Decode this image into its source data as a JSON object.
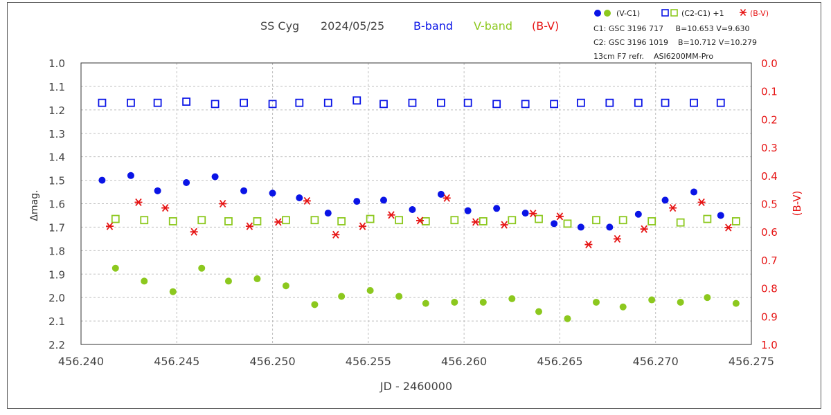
{
  "chart_data": {
    "type": "scatter",
    "title": {
      "object": "SS Cyg",
      "date": "2024/05/25",
      "b_label": "B-band",
      "v_label": "V-band",
      "bv_label": "(B-V)"
    },
    "xlabel": "JD - 2460000",
    "ylabel_left": "Δmag.",
    "ylabel_right": "(B-V)",
    "xlim": [
      456.24,
      456.275
    ],
    "ylim_left": [
      1.0,
      2.2
    ],
    "ylim_right": [
      0.0,
      1.0
    ],
    "x_ticks": [
      "456.240",
      "456.245",
      "456.250",
      "456.255",
      "456.260",
      "456.265",
      "456.270",
      "456.275"
    ],
    "y_ticks_left": [
      "1.0",
      "1.1",
      "1.2",
      "1.3",
      "1.4",
      "1.5",
      "1.6",
      "1.7",
      "1.8",
      "1.9",
      "2.0",
      "2.1",
      "2.2"
    ],
    "y_ticks_right": [
      "0.0",
      "0.1",
      "0.2",
      "0.3",
      "0.4",
      "0.5",
      "0.6",
      "0.7",
      "0.8",
      "0.9",
      "1.0"
    ],
    "grid": true,
    "legend": {
      "vc1_label": "(V-C1)",
      "c2c1_label": "(C2-C1) +1",
      "bv_label": "(B-V)",
      "info_lines": [
        "C1: GSC 3196 717     B=10.653 V=9.630",
        "C2: GSC 3196 1019    B=10.712 V=10.279",
        "13cm F7 refr.    ASI6200MM-Pro"
      ]
    },
    "colors": {
      "b": "#0a14e6",
      "v": "#8cc81e",
      "bv": "#e61414",
      "grid": "#bfbfbf"
    },
    "series": [
      {
        "name": "(V-C1)",
        "band": "B",
        "axis": "left",
        "marker": "filled-circle",
        "x": [
          456.2411,
          456.2426,
          456.244,
          456.2455,
          456.247,
          456.2485,
          456.25,
          456.2514,
          456.2529,
          456.2544,
          456.2558,
          456.2573,
          456.2588,
          456.2602,
          456.2617,
          456.2632,
          456.2647,
          456.2661,
          456.2676,
          456.2691,
          456.2705,
          456.272,
          456.2734
        ],
        "y": [
          1.5,
          1.48,
          1.545,
          1.51,
          1.485,
          1.545,
          1.555,
          1.575,
          1.64,
          1.59,
          1.585,
          1.625,
          1.56,
          1.63,
          1.62,
          1.64,
          1.685,
          1.7,
          1.7,
          1.645,
          1.585,
          1.55,
          1.65
        ]
      },
      {
        "name": "(V-C1)",
        "band": "V",
        "axis": "left",
        "marker": "filled-circle",
        "x": [
          456.2418,
          456.2433,
          456.2448,
          456.2463,
          456.2477,
          456.2492,
          456.2507,
          456.2522,
          456.2536,
          456.2551,
          456.2566,
          456.258,
          456.2595,
          456.261,
          456.2625,
          456.2639,
          456.2654,
          456.2669,
          456.2683,
          456.2698,
          456.2713,
          456.2727,
          456.2742
        ],
        "y": [
          1.875,
          1.93,
          1.975,
          1.875,
          1.93,
          1.92,
          1.95,
          2.03,
          1.995,
          1.97,
          1.995,
          2.025,
          2.02,
          2.02,
          2.005,
          2.06,
          2.09,
          2.02,
          2.04,
          2.01,
          2.02,
          2.0,
          2.025
        ]
      },
      {
        "name": "(C2-C1) +1",
        "band": "B",
        "axis": "left",
        "marker": "open-square",
        "x": [
          456.2411,
          456.2426,
          456.244,
          456.2455,
          456.247,
          456.2485,
          456.25,
          456.2514,
          456.2529,
          456.2544,
          456.2558,
          456.2573,
          456.2588,
          456.2602,
          456.2617,
          456.2632,
          456.2647,
          456.2661,
          456.2676,
          456.2691,
          456.2705,
          456.272,
          456.2734
        ],
        "y": [
          1.17,
          1.17,
          1.17,
          1.165,
          1.175,
          1.17,
          1.175,
          1.17,
          1.17,
          1.16,
          1.175,
          1.17,
          1.17,
          1.17,
          1.175,
          1.175,
          1.175,
          1.17,
          1.17,
          1.17,
          1.17,
          1.17,
          1.17
        ]
      },
      {
        "name": "(C2-C1) +1",
        "band": "V",
        "axis": "left",
        "marker": "open-square",
        "x": [
          456.2418,
          456.2433,
          456.2448,
          456.2463,
          456.2477,
          456.2492,
          456.2507,
          456.2522,
          456.2536,
          456.2551,
          456.2566,
          456.258,
          456.2595,
          456.261,
          456.2625,
          456.2639,
          456.2654,
          456.2669,
          456.2683,
          456.2698,
          456.2713,
          456.2727,
          456.2742
        ],
        "y": [
          1.665,
          1.67,
          1.675,
          1.67,
          1.675,
          1.675,
          1.67,
          1.67,
          1.675,
          1.665,
          1.67,
          1.675,
          1.67,
          1.675,
          1.67,
          1.665,
          1.685,
          1.67,
          1.67,
          1.675,
          1.68,
          1.665,
          1.675
        ]
      },
      {
        "name": "(B-V)",
        "axis": "right",
        "marker": "asterisk",
        "x": [
          456.2415,
          456.243,
          456.2444,
          456.2459,
          456.2474,
          456.2488,
          456.2503,
          456.2518,
          456.2533,
          456.2547,
          456.2562,
          456.2577,
          456.2591,
          456.2606,
          456.2621,
          456.2636,
          456.265,
          456.2665,
          456.268,
          456.2694,
          456.2709,
          456.2724,
          456.2738
        ],
        "y": [
          0.58,
          0.495,
          0.515,
          0.6,
          0.5,
          0.58,
          0.565,
          0.49,
          0.61,
          0.58,
          0.54,
          0.56,
          0.48,
          0.565,
          0.575,
          0.535,
          0.545,
          0.645,
          0.625,
          0.59,
          0.515,
          0.495,
          0.585
        ]
      }
    ]
  }
}
